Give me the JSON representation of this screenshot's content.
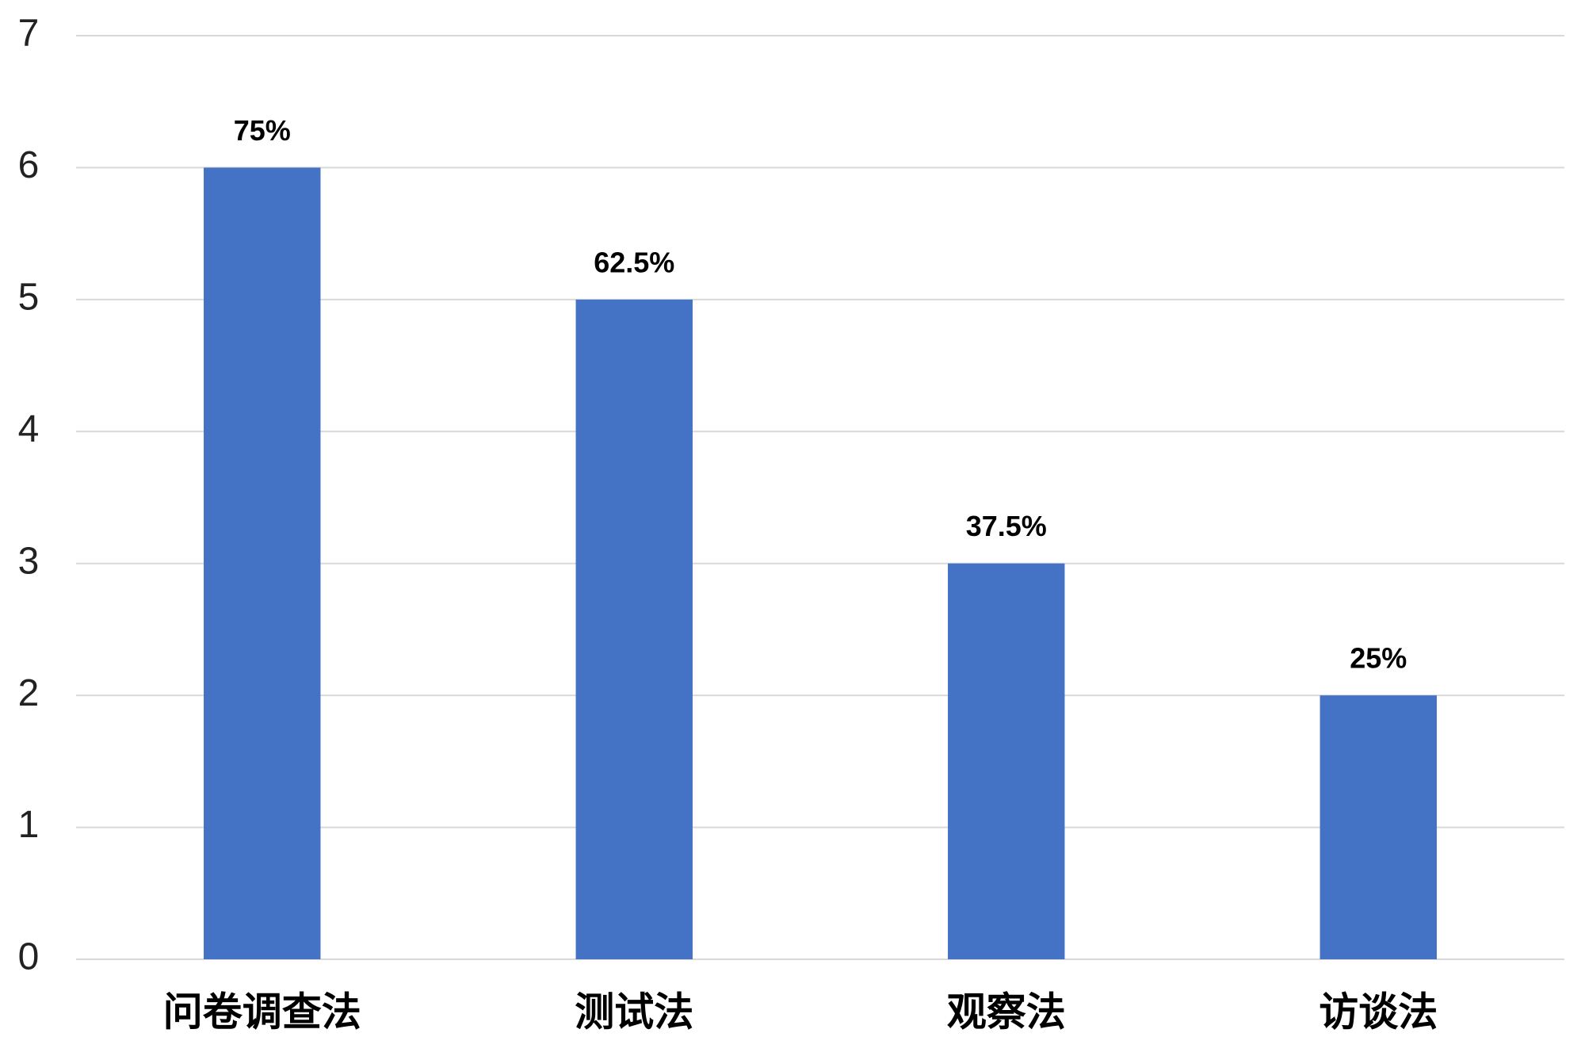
{
  "chart_data": {
    "type": "bar",
    "categories": [
      "问卷调查法",
      "测试法",
      "观察法",
      "访谈法"
    ],
    "values": [
      6,
      5,
      3,
      2
    ],
    "percent_labels": [
      "75%",
      "62.5%",
      "37.5%",
      "25%"
    ],
    "color": "#4472c4",
    "ylim": [
      0,
      7
    ],
    "yticks": [
      0,
      1,
      2,
      3,
      4,
      5,
      6,
      7
    ],
    "grid": true
  }
}
